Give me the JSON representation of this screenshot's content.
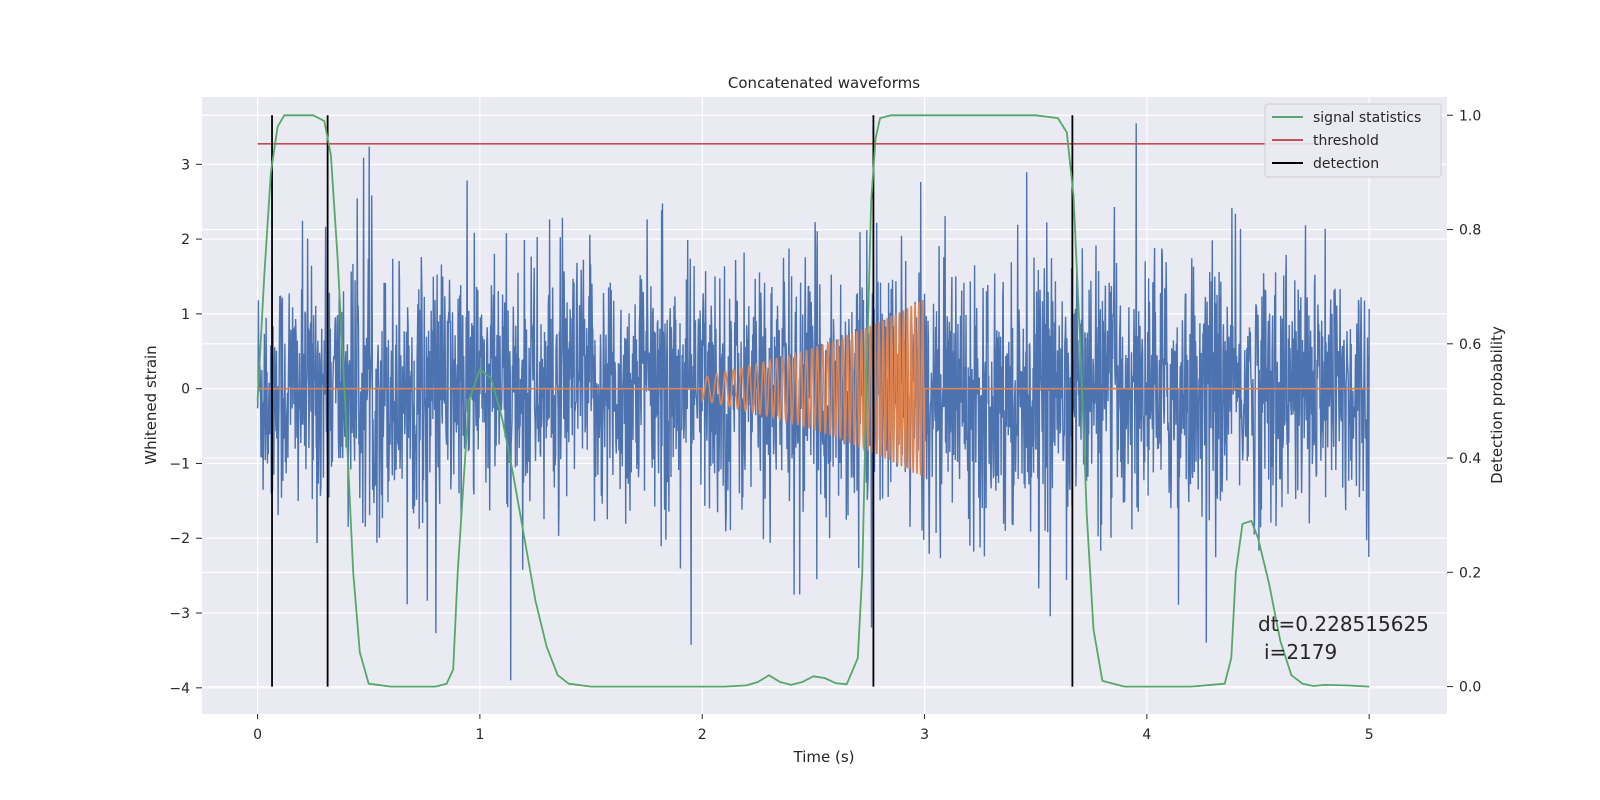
{
  "chart_data": {
    "type": "line",
    "title": "Concatenated waveforms",
    "xlabel": "Time (s)",
    "ylabel": "Whitened strain",
    "y2label": "Detection probability",
    "xlim": [
      -0.25,
      5.35
    ],
    "ylim": [
      -4.35,
      3.9
    ],
    "y2lim": [
      -0.048,
      1.032
    ],
    "xticks": [
      0,
      1,
      2,
      3,
      4,
      5
    ],
    "xtick_labels": [
      "0",
      "1",
      "2",
      "3",
      "4",
      "5"
    ],
    "yticks": [
      -4,
      -3,
      -2,
      -1,
      0,
      1,
      2,
      3
    ],
    "ytick_labels": [
      "−4",
      "−3",
      "−2",
      "−1",
      "0",
      "1",
      "2",
      "3"
    ],
    "y2ticks": [
      0.0,
      0.2,
      0.4,
      0.6,
      0.8,
      1.0
    ],
    "y2tick_labels": [
      "0.0",
      "0.2",
      "0.4",
      "0.6",
      "0.8",
      "1.0"
    ],
    "grid": true,
    "legend_position": "top-right",
    "legend": [
      {
        "label": "signal statistics",
        "color": "#55a868"
      },
      {
        "label": "threshold",
        "color": "#c44e52"
      },
      {
        "label": "detection",
        "color": "#000000"
      }
    ],
    "colors": {
      "strain": "#4c72b0",
      "injection": "#dd8452",
      "statistics": "#55a868",
      "threshold": "#c44e52",
      "detection": "#000000",
      "axes_background": "#eaeaf2",
      "grid": "#ffffff"
    },
    "series": [
      {
        "name": "strain",
        "axis": "left",
        "description_points": "noise, approx. zero mean, std ~0.9, spikes up to ~3.5 and down to ~-3.9",
        "x_range": [
          0,
          5
        ],
        "envelope": {
          "min": -3.9,
          "max": 3.55
        }
      },
      {
        "name": "injection",
        "axis": "left",
        "x": [
          0.0,
          2.0,
          2.0,
          2.2,
          2.4,
          2.6,
          2.8,
          2.9,
          3.0,
          3.0,
          5.0
        ],
        "amplitude": [
          0,
          0,
          0.15,
          0.3,
          0.45,
          0.65,
          0.9,
          1.05,
          1.2,
          0,
          0
        ],
        "frequency_hz": {
          "start": 22,
          "end": 60
        }
      },
      {
        "name": "signal statistics",
        "axis": "right",
        "x": [
          0.0,
          0.03,
          0.06,
          0.09,
          0.12,
          0.16,
          0.2,
          0.25,
          0.3,
          0.33,
          0.36,
          0.4,
          0.43,
          0.46,
          0.5,
          0.6,
          0.7,
          0.8,
          0.85,
          0.88,
          0.9,
          0.95,
          1.0,
          1.05,
          1.1,
          1.15,
          1.2,
          1.25,
          1.3,
          1.35,
          1.4,
          1.5,
          1.8,
          2.1,
          2.2,
          2.25,
          2.28,
          2.3,
          2.35,
          2.4,
          2.45,
          2.5,
          2.55,
          2.6,
          2.65,
          2.7,
          2.72,
          2.74,
          2.76,
          2.78,
          2.8,
          2.85,
          3.0,
          3.5,
          3.6,
          3.64,
          3.67,
          3.7,
          3.73,
          3.76,
          3.8,
          3.9,
          4.2,
          4.35,
          4.38,
          4.4,
          4.43,
          4.47,
          4.5,
          4.55,
          4.6,
          4.65,
          4.7,
          4.75,
          4.8,
          4.9,
          5.0
        ],
        "y": [
          0.5,
          0.72,
          0.9,
          0.98,
          1.0,
          1.0,
          1.0,
          1.0,
          0.99,
          0.93,
          0.75,
          0.45,
          0.2,
          0.06,
          0.005,
          0.0,
          0.0,
          0.0,
          0.005,
          0.03,
          0.2,
          0.5,
          0.555,
          0.54,
          0.47,
          0.37,
          0.26,
          0.15,
          0.07,
          0.02,
          0.005,
          0.0,
          0.0,
          0.0,
          0.002,
          0.008,
          0.015,
          0.02,
          0.008,
          0.003,
          0.008,
          0.018,
          0.015,
          0.006,
          0.004,
          0.05,
          0.2,
          0.55,
          0.85,
          0.96,
          0.995,
          1.0,
          1.0,
          1.0,
          0.995,
          0.97,
          0.86,
          0.6,
          0.3,
          0.1,
          0.01,
          0.0,
          0.0,
          0.005,
          0.05,
          0.2,
          0.285,
          0.29,
          0.26,
          0.18,
          0.08,
          0.02,
          0.005,
          0.001,
          0.003,
          0.002,
          0.0
        ]
      },
      {
        "name": "threshold",
        "axis": "right",
        "x": [
          0,
          5
        ],
        "y": [
          0.95,
          0.95
        ]
      },
      {
        "name": "detection",
        "axis": "right",
        "x": [
          0.065,
          0.315,
          2.77,
          3.665
        ],
        "y_range": [
          0,
          1
        ]
      }
    ],
    "annotations": [
      "dt=0.228515625",
      "i=2179"
    ]
  }
}
